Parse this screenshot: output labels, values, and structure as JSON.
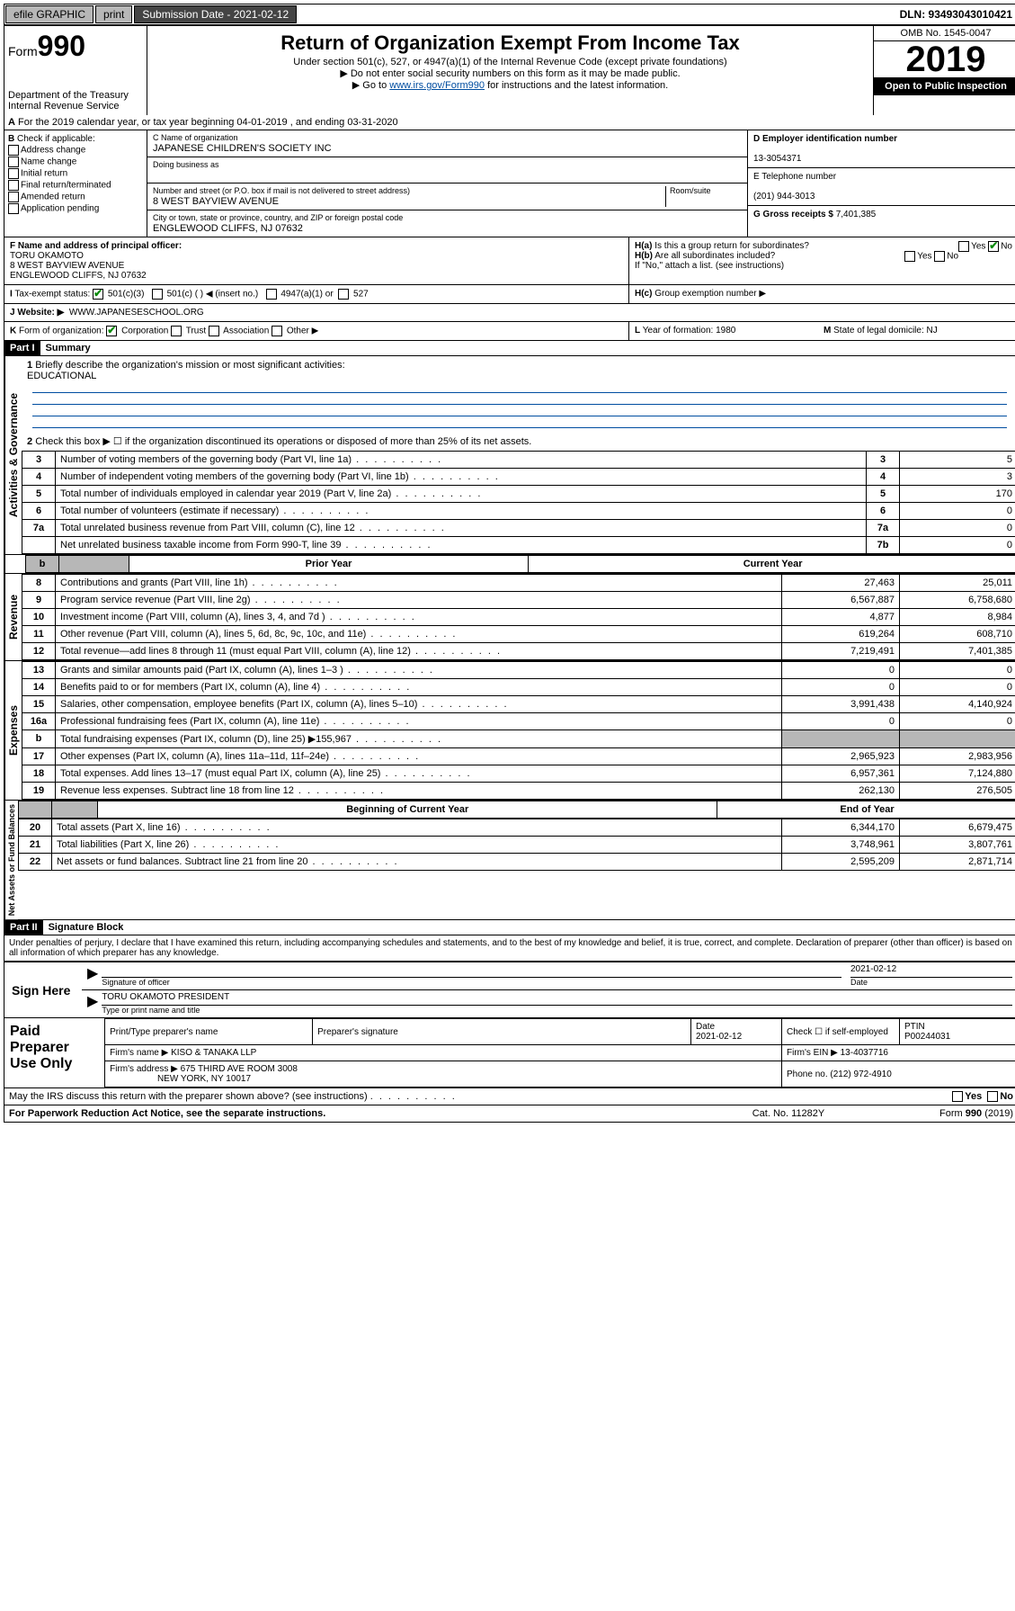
{
  "topbar": {
    "efile": "efile GRAPHIC",
    "print": "print",
    "submission_label": "Submission Date - 2021-02-12",
    "dln": "DLN: 93493043010421"
  },
  "header": {
    "form_prefix": "Form",
    "form_number": "990",
    "dept": "Department of the Treasury",
    "irs": "Internal Revenue Service",
    "title": "Return of Organization Exempt From Income Tax",
    "sub1": "Under section 501(c), 527, or 4947(a)(1) of the Internal Revenue Code (except private foundations)",
    "sub2": "Do not enter social security numbers on this form as it may be made public.",
    "sub3_pre": "Go to ",
    "sub3_link": "www.irs.gov/Form990",
    "sub3_post": " for instructions and the latest information.",
    "omb": "OMB No. 1545-0047",
    "year": "2019",
    "open": "Open to Public Inspection"
  },
  "lineA": "For the 2019 calendar year, or tax year beginning 04-01-2019    , and ending 03-31-2020",
  "boxB": {
    "label": "Check if applicable:",
    "addr": "Address change",
    "name": "Name change",
    "init": "Initial return",
    "final": "Final return/terminated",
    "amend": "Amended return",
    "app": "Application pending"
  },
  "boxC": {
    "name_lbl": "C Name of organization",
    "name_val": "JAPANESE CHILDREN'S SOCIETY INC",
    "dba_lbl": "Doing business as",
    "addr_lbl": "Number and street (or P.O. box if mail is not delivered to street address)",
    "room_lbl": "Room/suite",
    "addr_val": "8 WEST BAYVIEW AVENUE",
    "city_lbl": "City or town, state or province, country, and ZIP or foreign postal code",
    "city_val": "ENGLEWOOD CLIFFS, NJ  07632"
  },
  "boxD": {
    "lbl": "D Employer identification number",
    "val": "13-3054371"
  },
  "boxE": {
    "lbl": "E Telephone number",
    "val": "(201) 944-3013"
  },
  "boxG": {
    "lbl": "G Gross receipts $",
    "val": "7,401,385"
  },
  "boxF": {
    "lbl": "F  Name and address of principal officer:",
    "name": "TORU OKAMOTO",
    "addr1": "8 WEST BAYVIEW AVENUE",
    "addr2": "ENGLEWOOD CLIFFS, NJ  07632"
  },
  "boxH": {
    "ha": "Is this a group return for subordinates?",
    "hb": "Are all subordinates included?",
    "hb_note": "If \"No,\" attach a list. (see instructions)",
    "hc": "Group exemption number ▶",
    "yes": "Yes",
    "no": "No"
  },
  "boxI": {
    "lbl": "Tax-exempt status:",
    "c3": "501(c)(3)",
    "c": "501(c) (  ) ◀ (insert no.)",
    "a1": "4947(a)(1) or",
    "s527": "527"
  },
  "boxJ": {
    "lbl": "Website: ▶",
    "val": "WWW.JAPANESESCHOOL.ORG"
  },
  "boxK": {
    "lbl": "Form of organization:",
    "corp": "Corporation",
    "trust": "Trust",
    "assoc": "Association",
    "other": "Other ▶"
  },
  "boxL": {
    "lbl": "Year of formation:",
    "val": "1980"
  },
  "boxM": {
    "lbl": "State of legal domicile:",
    "val": "NJ"
  },
  "part1": {
    "bar": "Part I",
    "title": "Summary",
    "q1": "Briefly describe the organization's mission or most significant activities:",
    "q1val": "EDUCATIONAL",
    "q2": "Check this box ▶ ☐  if the organization discontinued its operations or disposed of more than 25% of its net assets.",
    "rows": [
      {
        "n": "3",
        "d": "Number of voting members of the governing body (Part VI, line 1a)",
        "c": "3",
        "v": "5"
      },
      {
        "n": "4",
        "d": "Number of independent voting members of the governing body (Part VI, line 1b)",
        "c": "4",
        "v": "3"
      },
      {
        "n": "5",
        "d": "Total number of individuals employed in calendar year 2019 (Part V, line 2a)",
        "c": "5",
        "v": "170"
      },
      {
        "n": "6",
        "d": "Total number of volunteers (estimate if necessary)",
        "c": "6",
        "v": "0"
      },
      {
        "n": "7a",
        "d": "Total unrelated business revenue from Part VIII, column (C), line 12",
        "c": "7a",
        "v": "0"
      },
      {
        "n": "",
        "d": "Net unrelated business taxable income from Form 990-T, line 39",
        "c": "7b",
        "v": "0"
      }
    ],
    "header_prior": "Prior Year",
    "header_curr": "Current Year",
    "revenue": [
      {
        "n": "8",
        "d": "Contributions and grants (Part VIII, line 1h)",
        "p": "27,463",
        "c": "25,011"
      },
      {
        "n": "9",
        "d": "Program service revenue (Part VIII, line 2g)",
        "p": "6,567,887",
        "c": "6,758,680"
      },
      {
        "n": "10",
        "d": "Investment income (Part VIII, column (A), lines 3, 4, and 7d )",
        "p": "4,877",
        "c": "8,984"
      },
      {
        "n": "11",
        "d": "Other revenue (Part VIII, column (A), lines 5, 6d, 8c, 9c, 10c, and 11e)",
        "p": "619,264",
        "c": "608,710"
      },
      {
        "n": "12",
        "d": "Total revenue—add lines 8 through 11 (must equal Part VIII, column (A), line 12)",
        "p": "7,219,491",
        "c": "7,401,385"
      }
    ],
    "expenses": [
      {
        "n": "13",
        "d": "Grants and similar amounts paid (Part IX, column (A), lines 1–3 )",
        "p": "0",
        "c": "0"
      },
      {
        "n": "14",
        "d": "Benefits paid to or for members (Part IX, column (A), line 4)",
        "p": "0",
        "c": "0"
      },
      {
        "n": "15",
        "d": "Salaries, other compensation, employee benefits (Part IX, column (A), lines 5–10)",
        "p": "3,991,438",
        "c": "4,140,924"
      },
      {
        "n": "16a",
        "d": "Professional fundraising fees (Part IX, column (A), line 11e)",
        "p": "0",
        "c": "0"
      },
      {
        "n": "b",
        "d": "Total fundraising expenses (Part IX, column (D), line 25) ▶155,967",
        "p": "grey",
        "c": "grey"
      },
      {
        "n": "17",
        "d": "Other expenses (Part IX, column (A), lines 11a–11d, 11f–24e)",
        "p": "2,965,923",
        "c": "2,983,956"
      },
      {
        "n": "18",
        "d": "Total expenses. Add lines 13–17 (must equal Part IX, column (A), line 25)",
        "p": "6,957,361",
        "c": "7,124,880"
      },
      {
        "n": "19",
        "d": "Revenue less expenses. Subtract line 18 from line 12",
        "p": "262,130",
        "c": "276,505"
      }
    ],
    "net_header_a": "Beginning of Current Year",
    "net_header_b": "End of Year",
    "net": [
      {
        "n": "20",
        "d": "Total assets (Part X, line 16)",
        "p": "6,344,170",
        "c": "6,679,475"
      },
      {
        "n": "21",
        "d": "Total liabilities (Part X, line 26)",
        "p": "3,748,961",
        "c": "3,807,761"
      },
      {
        "n": "22",
        "d": "Net assets or fund balances. Subtract line 21 from line 20",
        "p": "2,595,209",
        "c": "2,871,714"
      }
    ],
    "v_gov": "Activities & Governance",
    "v_rev": "Revenue",
    "v_exp": "Expenses",
    "v_net": "Net Assets or Fund Balances"
  },
  "part2": {
    "bar": "Part II",
    "title": "Signature Block",
    "perjury": "Under penalties of perjury, I declare that I have examined this return, including accompanying schedules and statements, and to the best of my knowledge and belief, it is true, correct, and complete. Declaration of preparer (other than officer) is based on all information of which preparer has any knowledge.",
    "sign_here": "Sign Here",
    "sig_officer": "Signature of officer",
    "date_lbl": "Date",
    "date_val": "2021-02-12",
    "name_title": "TORU OKAMOTO  PRESIDENT",
    "type_name": "Type or print name and title",
    "paid": "Paid Preparer Use Only",
    "prep_name_lbl": "Print/Type preparer's name",
    "prep_sig_lbl": "Preparer's signature",
    "prep_date_lbl": "Date",
    "prep_date_val": "2021-02-12",
    "self_emp": "Check ☐ if self-employed",
    "ptin_lbl": "PTIN",
    "ptin": "P00244031",
    "firm_name_lbl": "Firm's name    ▶",
    "firm_name": "KISO & TANAKA LLP",
    "firm_ein_lbl": "Firm's EIN ▶",
    "firm_ein": "13-4037716",
    "firm_addr_lbl": "Firm's address ▶",
    "firm_addr1": "675 THIRD AVE ROOM 3008",
    "firm_addr2": "NEW YORK, NY  10017",
    "phone_lbl": "Phone no.",
    "phone": "(212) 972-4910",
    "discuss": "May the IRS discuss this return with the preparer shown above? (see instructions)"
  },
  "footer": {
    "paperwork": "For Paperwork Reduction Act Notice, see the separate instructions.",
    "cat": "Cat. No. 11282Y",
    "form": "Form 990 (2019)"
  }
}
